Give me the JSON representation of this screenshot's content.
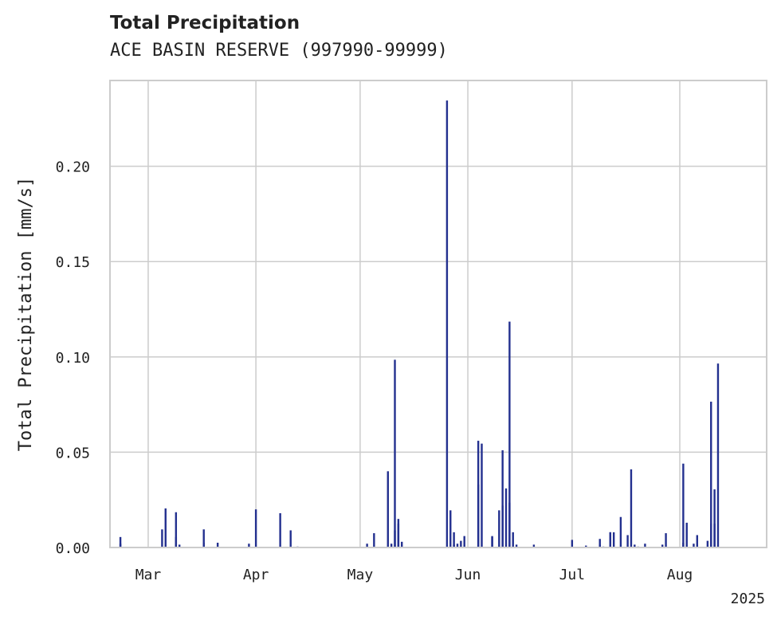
{
  "chart_data": {
    "type": "bar",
    "title": "Total Precipitation",
    "subtitle": "ACE BASIN RESERVE (997990-99999)",
    "xlabel": "",
    "ylabel": "Total Precipitation [mm/s]",
    "xlim": [
      "2025-02-18",
      "2025-08-26"
    ],
    "ylim": [
      0,
      0.245
    ],
    "x_ticks": [
      {
        "date": "2025-03-01",
        "label": "Mar"
      },
      {
        "date": "2025-04-01",
        "label": "Apr"
      },
      {
        "date": "2025-05-01",
        "label": "May"
      },
      {
        "date": "2025-06-01",
        "label": "Jun"
      },
      {
        "date": "2025-07-01",
        "label": "Jul"
      },
      {
        "date": "2025-08-01",
        "label": "Aug"
      }
    ],
    "x_offset_label": "2025",
    "y_ticks": [
      {
        "value": 0,
        "label": "0.00"
      },
      {
        "value": 0.05,
        "label": "0.05"
      },
      {
        "value": 0.1,
        "label": "0.10"
      },
      {
        "value": 0.15,
        "label": "0.15"
      },
      {
        "value": 0.2,
        "label": "0.20"
      }
    ],
    "grid": true,
    "bar_color": "#23308f",
    "x": [
      "2025-02-21",
      "2025-02-21",
      "2025-03-05",
      "2025-03-06",
      "2025-03-09",
      "2025-03-09",
      "2025-03-10",
      "2025-03-17",
      "2025-03-17",
      "2025-03-21",
      "2025-03-30",
      "2025-04-01",
      "2025-04-08",
      "2025-04-11",
      "2025-04-13",
      "2025-05-03",
      "2025-05-05",
      "2025-05-09",
      "2025-05-10",
      "2025-05-11",
      "2025-05-11",
      "2025-05-12",
      "2025-05-12",
      "2025-05-13",
      "2025-05-26",
      "2025-05-27",
      "2025-05-28",
      "2025-05-28",
      "2025-05-29",
      "2025-05-30",
      "2025-05-31",
      "2025-06-04",
      "2025-06-04",
      "2025-06-05",
      "2025-06-05",
      "2025-06-08",
      "2025-06-08",
      "2025-06-10",
      "2025-06-11",
      "2025-06-11",
      "2025-06-12",
      "2025-06-13",
      "2025-06-13",
      "2025-06-14",
      "2025-06-15",
      "2025-06-20",
      "2025-07-01",
      "2025-07-05",
      "2025-07-09",
      "2025-07-09",
      "2025-07-10",
      "2025-07-10",
      "2025-07-11",
      "2025-07-12",
      "2025-07-12",
      "2025-07-13",
      "2025-07-15",
      "2025-07-17",
      "2025-07-18",
      "2025-07-19",
      "2025-07-20",
      "2025-07-21",
      "2025-07-22",
      "2025-07-27",
      "2025-07-28",
      "2025-08-02",
      "2025-08-02",
      "2025-08-03",
      "2025-08-04",
      "2025-08-05",
      "2025-08-06",
      "2025-08-09",
      "2025-08-10",
      "2025-08-10",
      "2025-08-11",
      "2025-08-11",
      "2025-08-12"
    ],
    "values": [
      0.0055,
      0.002,
      0.0095,
      0.0205,
      0.0055,
      0.0185,
      0.0015,
      0.0025,
      0.0095,
      0.0025,
      0.002,
      0.02,
      0.018,
      0.009,
      0.0005,
      0.002,
      0.0075,
      0.04,
      0.002,
      0.009,
      0.0985,
      0.015,
      0.0125,
      0.003,
      0.2345,
      0.0195,
      0.008,
      0.0015,
      0.002,
      0.0035,
      0.006,
      0.033,
      0.056,
      0.0545,
      0.0,
      0.006,
      0.0055,
      0.0195,
      0.022,
      0.051,
      0.031,
      0.1185,
      0.0235,
      0.008,
      0.0015,
      0.0015,
      0.004,
      0.001,
      0.0015,
      0.0045,
      0.0,
      0.0005,
      0.0,
      0.008,
      0.008,
      0.008,
      0.016,
      0.0065,
      0.041,
      0.0015,
      0.0005,
      0.0,
      0.002,
      0.0015,
      0.0075,
      0.0025,
      0.044,
      0.013,
      0.0,
      0.002,
      0.0065,
      0.0035,
      0.0125,
      0.0765,
      0.0305,
      0.0125,
      0.0965
    ]
  }
}
